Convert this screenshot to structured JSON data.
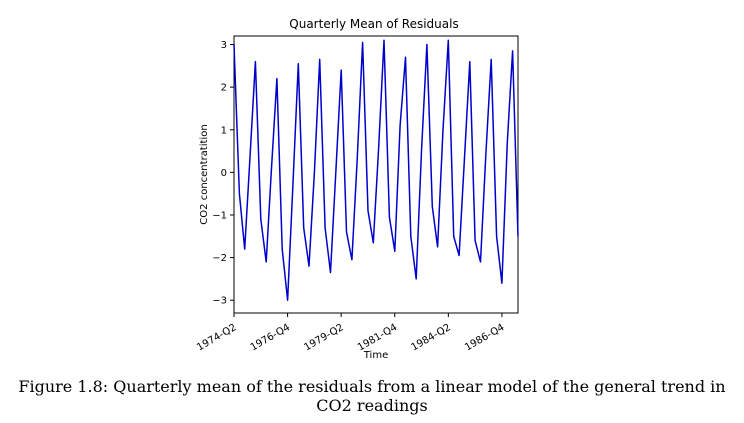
{
  "chart_data": {
    "type": "line",
    "title": "Quarterly Mean of Residuals",
    "xlabel": "Time",
    "ylabel": "CO2 concentratition",
    "ylim": [
      -3.3,
      3.2
    ],
    "yticks": [
      -3,
      -2,
      -1,
      0,
      1,
      2,
      3
    ],
    "yticklabels": [
      "−3",
      "−2",
      "−1",
      "0",
      "1",
      "2",
      "3"
    ],
    "xtick_labels": [
      "1974-Q2",
      "1976-Q4",
      "1979-Q2",
      "1981-Q4",
      "1984-Q2",
      "1986-Q4"
    ],
    "xtick_index": [
      0,
      10,
      20,
      30,
      40,
      50
    ],
    "grid": false,
    "series": [
      {
        "color": "#0000cc",
        "values": [
          3.0,
          -0.5,
          -1.8,
          0.4,
          2.6,
          -1.1,
          -2.1,
          0.1,
          2.2,
          -1.8,
          -3.0,
          -0.3,
          2.55,
          -1.3,
          -2.2,
          0.0,
          2.65,
          -1.3,
          -2.35,
          0.0,
          2.4,
          -1.4,
          -2.05,
          0.3,
          3.05,
          -0.9,
          -1.65,
          0.6,
          3.1,
          -1.05,
          -1.85,
          1.1,
          2.7,
          -1.5,
          -2.5,
          0.5,
          3.0,
          -0.8,
          -1.75,
          1.0,
          3.1,
          -1.5,
          -1.95,
          0.3,
          2.6,
          -1.6,
          -2.1,
          0.4,
          2.65,
          -1.5,
          -2.6,
          0.7,
          2.85,
          -1.5
        ]
      }
    ]
  },
  "caption": "Figure 1.8: Quarterly mean of the residuals from a linear model of the general trend in CO2 readings"
}
